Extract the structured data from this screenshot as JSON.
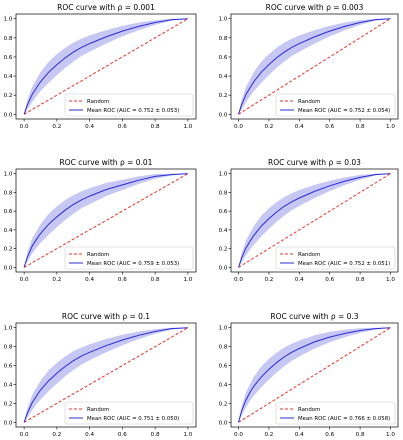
{
  "chart_data": [
    {
      "type": "line",
      "title": "ROC curve with ρ = 0.001",
      "xlim": [
        0,
        1
      ],
      "ylim": [
        0,
        1
      ],
      "xticks": [
        "0.0",
        "0.2",
        "0.4",
        "0.6",
        "0.8",
        "1.0"
      ],
      "yticks": [
        "0.0",
        "0.2",
        "0.4",
        "0.6",
        "0.8",
        "1.0"
      ],
      "grid": false,
      "legend_position": "lower-right",
      "series": [
        {
          "name": "Random",
          "style": "dashed",
          "color": "#e8322e",
          "x": [
            0,
            1
          ],
          "y": [
            0,
            1
          ]
        },
        {
          "name": "Mean ROC (AUC = 0.752 ± 0.053)",
          "color": "#2b2bd6",
          "x": [
            0,
            0.02,
            0.05,
            0.08,
            0.1,
            0.15,
            0.2,
            0.25,
            0.3,
            0.35,
            0.4,
            0.5,
            0.6,
            0.7,
            0.8,
            0.9,
            1.0
          ],
          "y": [
            0,
            0.1,
            0.21,
            0.29,
            0.34,
            0.44,
            0.52,
            0.59,
            0.65,
            0.7,
            0.74,
            0.81,
            0.87,
            0.92,
            0.96,
            0.99,
            1.0
          ],
          "band_width": [
            0,
            0.05,
            0.08,
            0.09,
            0.1,
            0.11,
            0.11,
            0.105,
            0.1,
            0.09,
            0.085,
            0.07,
            0.055,
            0.04,
            0.025,
            0.01,
            0
          ]
        }
      ]
    },
    {
      "type": "line",
      "title": "ROC curve with ρ = 0.003",
      "xlim": [
        0,
        1
      ],
      "ylim": [
        0,
        1
      ],
      "xticks": [
        "0.0",
        "0.2",
        "0.4",
        "0.6",
        "0.8",
        "1.0"
      ],
      "yticks": [
        "0.0",
        "0.2",
        "0.4",
        "0.6",
        "0.8",
        "1.0"
      ],
      "grid": false,
      "legend_position": "lower-right",
      "series": [
        {
          "name": "Random",
          "style": "dashed",
          "color": "#e8322e",
          "x": [
            0,
            1
          ],
          "y": [
            0,
            1
          ]
        },
        {
          "name": "Mean ROC (AUC = 0.752 ± 0.054)",
          "color": "#2b2bd6",
          "x": [
            0,
            0.02,
            0.05,
            0.08,
            0.1,
            0.15,
            0.2,
            0.25,
            0.3,
            0.35,
            0.4,
            0.5,
            0.6,
            0.7,
            0.8,
            0.9,
            1.0
          ],
          "y": [
            0,
            0.1,
            0.21,
            0.29,
            0.34,
            0.44,
            0.52,
            0.59,
            0.65,
            0.7,
            0.74,
            0.81,
            0.87,
            0.92,
            0.96,
            0.99,
            1.0
          ],
          "band_width": [
            0,
            0.05,
            0.08,
            0.09,
            0.1,
            0.11,
            0.11,
            0.105,
            0.1,
            0.09,
            0.085,
            0.07,
            0.055,
            0.04,
            0.025,
            0.01,
            0
          ]
        }
      ]
    },
    {
      "type": "line",
      "title": "ROC curve with ρ = 0.01",
      "xlim": [
        0,
        1
      ],
      "ylim": [
        0,
        1
      ],
      "xticks": [
        "0.0",
        "0.2",
        "0.4",
        "0.6",
        "0.8",
        "1.0"
      ],
      "yticks": [
        "0.0",
        "0.2",
        "0.4",
        "0.6",
        "0.8",
        "1.0"
      ],
      "grid": false,
      "legend_position": "lower-right",
      "series": [
        {
          "name": "Random",
          "style": "dashed",
          "color": "#e8322e",
          "x": [
            0,
            1
          ],
          "y": [
            0,
            1
          ]
        },
        {
          "name": "Mean ROC (AUC = 0.759 ± 0.053)",
          "color": "#2b2bd6",
          "x": [
            0,
            0.02,
            0.05,
            0.08,
            0.1,
            0.15,
            0.2,
            0.25,
            0.3,
            0.35,
            0.4,
            0.5,
            0.6,
            0.7,
            0.8,
            0.9,
            1.0
          ],
          "y": [
            0,
            0.11,
            0.23,
            0.31,
            0.36,
            0.46,
            0.54,
            0.61,
            0.67,
            0.72,
            0.76,
            0.83,
            0.88,
            0.93,
            0.97,
            0.99,
            1.0
          ],
          "band_width": [
            0,
            0.05,
            0.08,
            0.09,
            0.1,
            0.11,
            0.11,
            0.105,
            0.1,
            0.09,
            0.085,
            0.07,
            0.055,
            0.04,
            0.025,
            0.01,
            0
          ]
        }
      ]
    },
    {
      "type": "line",
      "title": "ROC curve with ρ = 0.03",
      "xlim": [
        0,
        1
      ],
      "ylim": [
        0,
        1
      ],
      "xticks": [
        "0.0",
        "0.2",
        "0.4",
        "0.6",
        "0.8",
        "1.0"
      ],
      "yticks": [
        "0.0",
        "0.2",
        "0.4",
        "0.6",
        "0.8",
        "1.0"
      ],
      "grid": false,
      "legend_position": "lower-right",
      "series": [
        {
          "name": "Random",
          "style": "dashed",
          "color": "#e8322e",
          "x": [
            0,
            1
          ],
          "y": [
            0,
            1
          ]
        },
        {
          "name": "Mean ROC (AUC = 0.752 ± 0.051)",
          "color": "#2b2bd6",
          "x": [
            0,
            0.02,
            0.05,
            0.08,
            0.1,
            0.15,
            0.2,
            0.25,
            0.3,
            0.35,
            0.4,
            0.5,
            0.6,
            0.7,
            0.8,
            0.9,
            1.0
          ],
          "y": [
            0,
            0.1,
            0.21,
            0.29,
            0.34,
            0.44,
            0.52,
            0.59,
            0.65,
            0.7,
            0.74,
            0.81,
            0.87,
            0.92,
            0.96,
            0.99,
            1.0
          ],
          "band_width": [
            0,
            0.05,
            0.08,
            0.09,
            0.1,
            0.11,
            0.11,
            0.105,
            0.1,
            0.09,
            0.085,
            0.07,
            0.055,
            0.04,
            0.025,
            0.01,
            0
          ]
        }
      ]
    },
    {
      "type": "line",
      "title": "ROC curve with ρ = 0.1",
      "xlim": [
        0,
        1
      ],
      "ylim": [
        0,
        1
      ],
      "xticks": [
        "0.0",
        "0.2",
        "0.4",
        "0.6",
        "0.8",
        "1.0"
      ],
      "yticks": [
        "0.0",
        "0.2",
        "0.4",
        "0.6",
        "0.8",
        "1.0"
      ],
      "grid": false,
      "legend_position": "lower-right",
      "series": [
        {
          "name": "Random",
          "style": "dashed",
          "color": "#e8322e",
          "x": [
            0,
            1
          ],
          "y": [
            0,
            1
          ]
        },
        {
          "name": "Mean ROC (AUC = 0.751 ± 0.050)",
          "color": "#2b2bd6",
          "x": [
            0,
            0.02,
            0.05,
            0.08,
            0.1,
            0.15,
            0.2,
            0.25,
            0.3,
            0.35,
            0.4,
            0.5,
            0.6,
            0.7,
            0.8,
            0.9,
            1.0
          ],
          "y": [
            0,
            0.1,
            0.21,
            0.29,
            0.34,
            0.44,
            0.52,
            0.59,
            0.65,
            0.7,
            0.74,
            0.81,
            0.87,
            0.92,
            0.96,
            0.99,
            1.0
          ],
          "band_width": [
            0,
            0.05,
            0.08,
            0.09,
            0.1,
            0.11,
            0.11,
            0.105,
            0.1,
            0.09,
            0.085,
            0.07,
            0.055,
            0.04,
            0.025,
            0.01,
            0
          ]
        }
      ]
    },
    {
      "type": "line",
      "title": "ROC curve with ρ = 0.3",
      "xlim": [
        0,
        1
      ],
      "ylim": [
        0,
        1
      ],
      "xticks": [
        "0.0",
        "0.2",
        "0.4",
        "0.6",
        "0.8",
        "1.0"
      ],
      "yticks": [
        "0.0",
        "0.2",
        "0.4",
        "0.6",
        "0.8",
        "1.0"
      ],
      "grid": false,
      "legend_position": "lower-right",
      "series": [
        {
          "name": "Random",
          "style": "dashed",
          "color": "#e8322e",
          "x": [
            0,
            1
          ],
          "y": [
            0,
            1
          ]
        },
        {
          "name": "Mean ROC (AUC = 0.766 ± 0.058)",
          "color": "#2b2bd6",
          "x": [
            0,
            0.02,
            0.05,
            0.08,
            0.1,
            0.15,
            0.2,
            0.25,
            0.3,
            0.35,
            0.4,
            0.5,
            0.6,
            0.7,
            0.8,
            0.9,
            1.0
          ],
          "y": [
            0,
            0.12,
            0.24,
            0.33,
            0.38,
            0.48,
            0.56,
            0.63,
            0.69,
            0.74,
            0.78,
            0.85,
            0.9,
            0.94,
            0.97,
            0.99,
            1.0
          ],
          "band_width": [
            0,
            0.05,
            0.08,
            0.09,
            0.1,
            0.11,
            0.11,
            0.105,
            0.1,
            0.09,
            0.085,
            0.07,
            0.055,
            0.04,
            0.025,
            0.01,
            0
          ]
        }
      ]
    }
  ],
  "colors": {
    "band_fill": "#b4b4f0",
    "axis": "#000000"
  }
}
